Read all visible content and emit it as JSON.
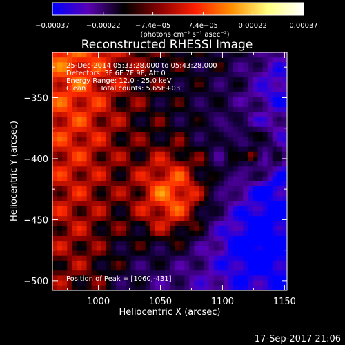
{
  "chart_data": {
    "type": "heatmap",
    "title": "Reconstructed RHESSI Image",
    "xlabel": "Heliocentric X (arcsec)",
    "ylabel": "Heliocentric Y (arcsec)",
    "xlim": [
      963,
      1152
    ],
    "ylim": [
      -508,
      -313
    ],
    "xticks": [
      1000,
      1050,
      1100,
      1150
    ],
    "yticks": [
      -350,
      -400,
      -450,
      -500
    ],
    "xtick_labels": [
      "1000",
      "1050",
      "1100",
      "1150"
    ],
    "ytick_labels": [
      "−350",
      "−400",
      "−450",
      "−500"
    ],
    "colorbar": {
      "min": -0.00037,
      "max": 0.00037,
      "ticks": [
        -0.00037,
        -0.00022,
        -7.4e-05,
        7.4e-05,
        0.00022,
        0.00037
      ],
      "tick_labels": [
        "−0.00037",
        "−0.00022",
        "−7.4e−05",
        "7.4e−05",
        "0.00022",
        "0.00037"
      ],
      "unit_label": "(photons cm⁻² s⁻¹ asec⁻²)",
      "colors": [
        "#0000ff",
        "#5a00b4",
        "#000000",
        "#8b0000",
        "#ff2000",
        "#ff9000",
        "#ffff80",
        "#ffffff"
      ]
    },
    "annotations": {
      "time_range": "25-Dec-2014 05:33:28.000 to 05:43:28.000",
      "detectors": "Detectors: 3F 6F 7F 9F, Att 0",
      "energy_range": "Energy Range: 12.0 - 25.0 keV",
      "algorithm": "Clean",
      "total_counts": "Total counts: 5.65E+03",
      "peak_position": "Position of Peak = [1060,-431]"
    },
    "peak": {
      "x": 1060,
      "y": -431
    }
  },
  "footer": {
    "timestamp": "17-Sep-2017 21:06"
  }
}
